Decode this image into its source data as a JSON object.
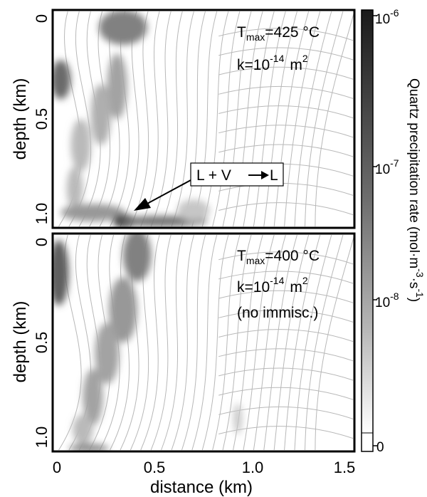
{
  "chart_data": {
    "type": "heatmap",
    "xlabel": "distance (km)",
    "x_ticks": [
      "0",
      "0.5",
      "1.0",
      "1.5"
    ],
    "x_tick_values": [
      0,
      0.5,
      1.0,
      1.5
    ],
    "xlim": [
      0,
      1.5
    ],
    "panels": [
      {
        "ylabel": "depth (km)",
        "y_ticks": [
          "0",
          "0.5",
          "1.0"
        ],
        "y_tick_values": [
          0,
          0.5,
          1.0
        ],
        "ylim": [
          0,
          1.0
        ],
        "annotation": {
          "t_prefix": "T",
          "t_sub": "max",
          "t_value": "=425 °C",
          "k_prefix": "k=10",
          "k_exp": "-14",
          "k_unit": "m",
          "k_unit_exp": "2",
          "extra": ""
        },
        "callout": {
          "text": "L + V",
          "arrow_text": "L"
        },
        "blobs": [
          {
            "x": 0.04,
            "y": 0.32,
            "rx": 0.05,
            "ry": 0.09,
            "level": 0.65
          },
          {
            "x": 0.35,
            "y": 0.08,
            "rx": 0.12,
            "ry": 0.08,
            "level": 0.55
          },
          {
            "x": 0.32,
            "y": 0.35,
            "rx": 0.05,
            "ry": 0.15,
            "level": 0.4
          },
          {
            "x": 0.24,
            "y": 0.48,
            "rx": 0.05,
            "ry": 0.14,
            "level": 0.35
          },
          {
            "x": 0.14,
            "y": 0.62,
            "rx": 0.05,
            "ry": 0.12,
            "level": 0.3
          },
          {
            "x": 0.11,
            "y": 0.82,
            "rx": 0.04,
            "ry": 0.1,
            "level": 0.3
          },
          {
            "x": 0.2,
            "y": 0.93,
            "rx": 0.16,
            "ry": 0.04,
            "level": 0.45
          },
          {
            "x": 0.36,
            "y": 0.97,
            "rx": 0.06,
            "ry": 0.03,
            "level": 0.95
          },
          {
            "x": 0.55,
            "y": 0.97,
            "rx": 0.22,
            "ry": 0.025,
            "level": 0.6
          },
          {
            "x": 0.7,
            "y": 0.92,
            "rx": 0.08,
            "ry": 0.05,
            "level": 0.25
          }
        ]
      },
      {
        "ylabel": "depth (km)",
        "y_ticks": [
          "0",
          "0.5",
          "1.0"
        ],
        "y_tick_values": [
          0,
          0.5,
          1.0
        ],
        "ylim": [
          0,
          1.0
        ],
        "annotation": {
          "t_prefix": "T",
          "t_sub": "max",
          "t_value": "=400 °C",
          "k_prefix": "k=10",
          "k_exp": "-14",
          "k_unit": "m",
          "k_unit_exp": "2",
          "extra": "(no immisc.)"
        },
        "callout": null,
        "blobs": [
          {
            "x": 0.03,
            "y": 0.18,
            "rx": 0.05,
            "ry": 0.15,
            "level": 0.7
          },
          {
            "x": 0.42,
            "y": 0.1,
            "rx": 0.07,
            "ry": 0.12,
            "level": 0.55
          },
          {
            "x": 0.35,
            "y": 0.35,
            "rx": 0.07,
            "ry": 0.15,
            "level": 0.45
          },
          {
            "x": 0.27,
            "y": 0.55,
            "rx": 0.06,
            "ry": 0.14,
            "level": 0.4
          },
          {
            "x": 0.2,
            "y": 0.75,
            "rx": 0.05,
            "ry": 0.13,
            "level": 0.4
          },
          {
            "x": 0.15,
            "y": 0.9,
            "rx": 0.05,
            "ry": 0.07,
            "level": 0.3
          },
          {
            "x": 0.18,
            "y": 0.985,
            "rx": 0.1,
            "ry": 0.02,
            "level": 0.5
          },
          {
            "x": 0.92,
            "y": 0.85,
            "rx": 0.02,
            "ry": 0.07,
            "level": 0.25
          }
        ]
      }
    ],
    "colorbar": {
      "title_main": "Quartz precipitation rate (mol·m",
      "title_exp1": "-3",
      "title_mid": "·s",
      "title_exp2": "-1",
      "title_end": ")",
      "ticks": [
        {
          "base": "10",
          "exp": "-6",
          "value": 1e-06
        },
        {
          "base": "10",
          "exp": "-7",
          "value": 1e-07
        },
        {
          "base": "10",
          "exp": "-8",
          "value": 1e-08
        },
        {
          "base": "0",
          "exp": "",
          "value": 0
        }
      ],
      "colors": {
        "max": "#1a1a1a",
        "min": "#ffffff"
      }
    },
    "colors": {
      "contour": "#b8b8b8",
      "frame": "#000000"
    }
  }
}
